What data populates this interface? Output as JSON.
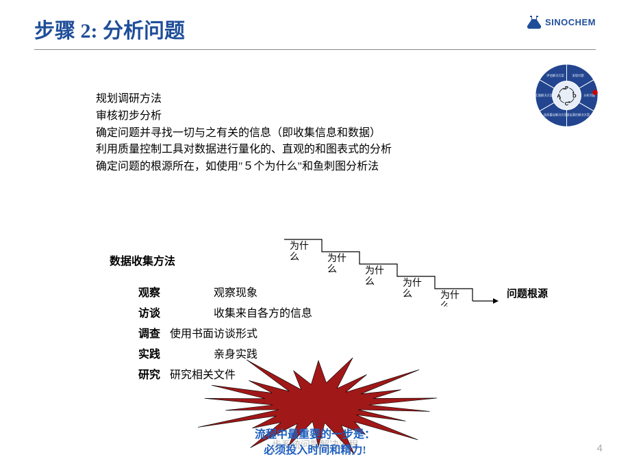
{
  "header": {
    "title": "步骤 2:  分析问题",
    "logo_text": "SINOCHEM",
    "logo_color": "#1f4e99"
  },
  "bullets": [
    "规划调研方法",
    "审核初步分析",
    "确定问题并寻找一切与之有关的信息（即收集信息和数据）",
    "利用质量控制工具对数据进行量化的、直观的和图表式的分析",
    "确定问题的根源所在，如使用\"５个为什么\"和鱼刺图分析法"
  ],
  "section_title": "数据收集方法",
  "methods": [
    {
      "label": "观察",
      "desc": "观察现象",
      "indent": 112
    },
    {
      "label": "访谈",
      "desc": "收集来自各方的信息",
      "indent": 112
    },
    {
      "label": "调查",
      "desc": "使用书面访谈形式",
      "indent": 48
    },
    {
      "label": "实践",
      "desc": "亲身实践",
      "indent": 112
    },
    {
      "label": "研究",
      "desc": "研究相关文件",
      "indent": 48
    }
  ],
  "stairs": {
    "label": "为什么",
    "count": 5,
    "step_w": 55,
    "step_h": 18,
    "font_size": 14,
    "line_color": "#000000"
  },
  "root_label": "问题根源",
  "bottom": {
    "line1": "流程中最重要的一步是：",
    "line2": "必须投入时间和精力!",
    "color": "#1f5fbf"
  },
  "starburst": {
    "fill": "#a01818",
    "stroke": "#000000"
  },
  "pdca": {
    "segments": [
      "发现问题",
      "分析问题",
      "提出潜在解决方案",
      "选择最佳解决方案",
      "实施解决方案",
      "评估解决方案"
    ],
    "center_letters": [
      "P",
      "D",
      "C",
      "A"
    ],
    "fill": "#23458f",
    "highlight": "#cc0000",
    "label_fontsize": 4.5
  },
  "footer": "步系统问题解决流程",
  "page_number": "4",
  "colors": {
    "title": "#1f4e99",
    "text": "#000000",
    "footer_gray": "#bbbbbb",
    "pagenum_gray": "#aaaaaa",
    "background": "#ffffff"
  }
}
